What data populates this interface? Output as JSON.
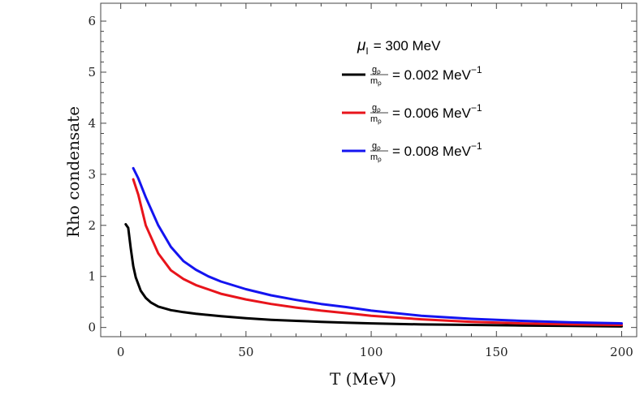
{
  "chart_data": {
    "type": "line",
    "title": "",
    "xlabel": "T (MeV)",
    "ylabel": "Rho condensate",
    "xlim": [
      -8,
      206
    ],
    "ylim": [
      -0.18,
      6.35
    ],
    "x_ticks": [
      0,
      50,
      100,
      150,
      200
    ],
    "y_ticks": [
      0,
      1,
      2,
      3,
      4,
      5,
      6
    ],
    "x_tick_labels": [
      "0",
      "50",
      "100",
      "150",
      "200"
    ],
    "y_tick_labels": [
      "0",
      "1",
      "2",
      "3",
      "4",
      "5",
      "6"
    ],
    "legend": {
      "header_symbol": "μ",
      "header_sub": "I",
      "header_value": "= 300 MeV",
      "placement": "top-right"
    },
    "series": [
      {
        "name": "g_ρ/m_ρ = 0.002 MeV^-1",
        "frac_num": "g",
        "frac_num_sub": "ρ",
        "frac_den": "m",
        "frac_den_sub": "ρ",
        "value_text": "= 0.002 MeV",
        "exp_text": "−1",
        "color": "#000000",
        "x": [
          2,
          3,
          4,
          5,
          6,
          8,
          10,
          12,
          15,
          20,
          25,
          30,
          40,
          50,
          60,
          70,
          80,
          90,
          100,
          120,
          140,
          160,
          180,
          200
        ],
        "y": [
          2.02,
          1.95,
          1.55,
          1.2,
          0.98,
          0.72,
          0.58,
          0.49,
          0.41,
          0.34,
          0.3,
          0.27,
          0.22,
          0.18,
          0.15,
          0.13,
          0.11,
          0.095,
          0.08,
          0.06,
          0.05,
          0.04,
          0.03,
          0.02
        ]
      },
      {
        "name": "g_ρ/m_ρ = 0.006 MeV^-1",
        "frac_num": "g",
        "frac_num_sub": "ρ",
        "frac_den": "m",
        "frac_den_sub": "ρ",
        "value_text": "= 0.006 MeV",
        "exp_text": "−1",
        "color": "#e8141b",
        "x": [
          5,
          7,
          10,
          15,
          20,
          25,
          30,
          40,
          50,
          60,
          70,
          80,
          90,
          100,
          120,
          140,
          160,
          180,
          200
        ],
        "y": [
          2.9,
          2.6,
          2.0,
          1.45,
          1.12,
          0.95,
          0.83,
          0.66,
          0.55,
          0.46,
          0.39,
          0.33,
          0.28,
          0.23,
          0.16,
          0.11,
          0.08,
          0.06,
          0.05
        ]
      },
      {
        "name": "g_ρ/m_ρ = 0.008 MeV^-1",
        "frac_num": "g",
        "frac_num_sub": "ρ",
        "frac_den": "m",
        "frac_den_sub": "ρ",
        "value_text": "= 0.008 MeV",
        "exp_text": "−1",
        "color": "#1414f0",
        "x": [
          5,
          7,
          10,
          15,
          20,
          25,
          30,
          35,
          40,
          50,
          60,
          70,
          80,
          90,
          100,
          120,
          140,
          160,
          180,
          200
        ],
        "y": [
          3.12,
          2.92,
          2.55,
          2.0,
          1.58,
          1.3,
          1.13,
          1.0,
          0.9,
          0.75,
          0.63,
          0.54,
          0.46,
          0.4,
          0.33,
          0.23,
          0.17,
          0.13,
          0.1,
          0.08
        ]
      }
    ]
  }
}
